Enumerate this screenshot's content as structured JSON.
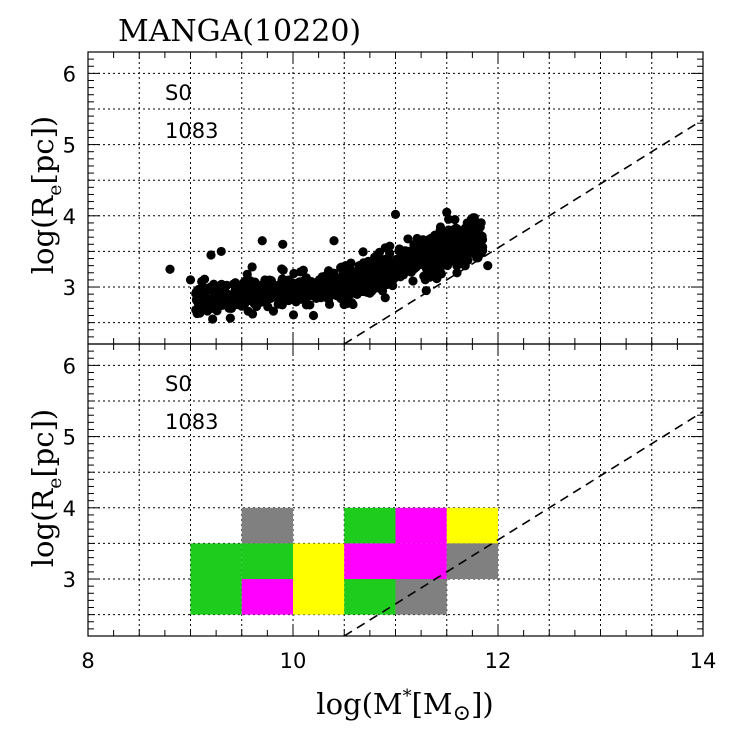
{
  "title": "MANGA(10220)",
  "xlabel": "log(M*[M⊙])",
  "ylabel": "log(Re[pc])",
  "colors": {
    "gray": "#808080",
    "green": "#1ecc1e",
    "magenta": "#ff00ff",
    "yellow": "#ffff00",
    "point": "#000000"
  },
  "chart_data": [
    {
      "type": "scatter",
      "panel": "top",
      "xlim": [
        8,
        14
      ],
      "ylim": [
        2.2,
        6.3
      ],
      "x_ticks": [
        "8",
        "10",
        "12",
        "14"
      ],
      "y_ticks": [
        "3",
        "4",
        "5",
        "6"
      ],
      "annotation_class": "S0",
      "annotation_count": "1083",
      "reference_line": {
        "x": [
          10.5,
          14.0
        ],
        "y": [
          2.2,
          5.35
        ]
      },
      "points_described": "1083 galaxies; dense band from x=9.0 (y~2.8) to x=11.8 (y~3.8), rising relation",
      "points_sample": [
        {
          "x": 8.8,
          "y": 3.25
        },
        {
          "x": 9.0,
          "y": 3.1
        },
        {
          "x": 9.2,
          "y": 3.45
        },
        {
          "x": 9.3,
          "y": 3.5
        },
        {
          "x": 9.3,
          "y": 2.9
        },
        {
          "x": 9.4,
          "y": 2.7
        },
        {
          "x": 9.6,
          "y": 2.9
        },
        {
          "x": 9.6,
          "y": 3.05
        },
        {
          "x": 9.7,
          "y": 3.65
        },
        {
          "x": 9.9,
          "y": 3.6
        },
        {
          "x": 10.0,
          "y": 2.85
        },
        {
          "x": 10.1,
          "y": 3.0
        },
        {
          "x": 10.2,
          "y": 2.6
        },
        {
          "x": 10.3,
          "y": 3.0
        },
        {
          "x": 10.4,
          "y": 3.65
        },
        {
          "x": 10.5,
          "y": 3.1
        },
        {
          "x": 10.6,
          "y": 3.15
        },
        {
          "x": 10.8,
          "y": 3.3
        },
        {
          "x": 10.9,
          "y": 3.55
        },
        {
          "x": 11.0,
          "y": 4.02
        },
        {
          "x": 11.1,
          "y": 3.5
        },
        {
          "x": 11.3,
          "y": 3.6
        },
        {
          "x": 11.5,
          "y": 4.05
        },
        {
          "x": 11.6,
          "y": 3.8
        },
        {
          "x": 11.7,
          "y": 3.9
        },
        {
          "x": 11.8,
          "y": 3.8
        },
        {
          "x": 11.9,
          "y": 3.3
        },
        {
          "x": 11.6,
          "y": 3.2
        },
        {
          "x": 11.3,
          "y": 2.95
        },
        {
          "x": 10.9,
          "y": 2.85
        }
      ]
    },
    {
      "type": "heatmap",
      "panel": "bottom",
      "xlim": [
        8,
        14
      ],
      "ylim": [
        2.2,
        6.3
      ],
      "x_ticks": [
        "8",
        "10",
        "12",
        "14"
      ],
      "y_ticks": [
        "3",
        "4",
        "5",
        "6"
      ],
      "annotation_class": "S0",
      "annotation_count": "1083",
      "reference_line": {
        "x": [
          10.5,
          14.0
        ],
        "y": [
          2.2,
          5.35
        ]
      },
      "bin_size": {
        "x": 0.5,
        "y": 0.5
      },
      "cells": [
        {
          "x0": 9.5,
          "y0": 3.5,
          "color": "gray"
        },
        {
          "x0": 10.5,
          "y0": 3.5,
          "color": "green"
        },
        {
          "x0": 11.0,
          "y0": 3.5,
          "color": "magenta"
        },
        {
          "x0": 11.5,
          "y0": 3.5,
          "color": "yellow"
        },
        {
          "x0": 9.0,
          "y0": 3.0,
          "color": "green"
        },
        {
          "x0": 9.5,
          "y0": 3.0,
          "color": "green"
        },
        {
          "x0": 10.0,
          "y0": 3.0,
          "color": "yellow"
        },
        {
          "x0": 10.5,
          "y0": 3.0,
          "color": "magenta"
        },
        {
          "x0": 11.0,
          "y0": 3.0,
          "color": "magenta"
        },
        {
          "x0": 11.5,
          "y0": 3.0,
          "color": "gray"
        },
        {
          "x0": 9.0,
          "y0": 2.5,
          "color": "green"
        },
        {
          "x0": 9.5,
          "y0": 2.5,
          "color": "magenta"
        },
        {
          "x0": 10.0,
          "y0": 2.5,
          "color": "yellow"
        },
        {
          "x0": 10.5,
          "y0": 2.5,
          "color": "green"
        },
        {
          "x0": 11.0,
          "y0": 2.5,
          "color": "gray"
        }
      ]
    }
  ]
}
